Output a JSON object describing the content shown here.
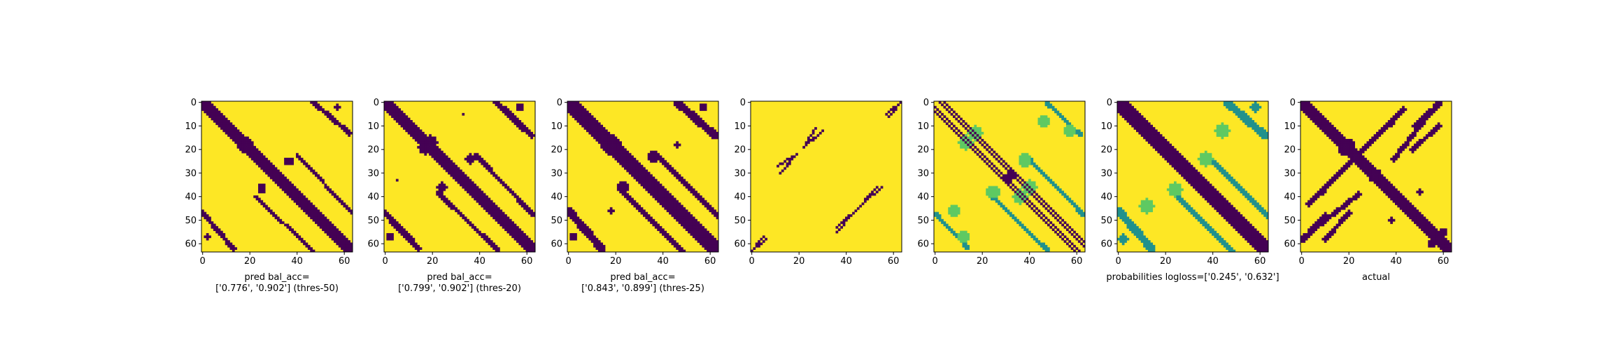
{
  "colors": {
    "background": "#fde725",
    "dark": "#440154",
    "mid": "#21918c",
    "light": "#5ec962",
    "frame": "#000000"
  },
  "chart_data": [
    {
      "type": "heatmap",
      "label_lines": [
        "pred bal_acc=",
        "['0.776', '0.902'] (thres-50)"
      ],
      "matrix_size": 64,
      "xticks": [
        0,
        20,
        40,
        60
      ],
      "yticks": [
        0,
        10,
        20,
        30,
        40,
        50,
        60
      ],
      "description_band": [
        {
          "offset": 0,
          "width": 2.2
        }
      ],
      "features": [
        {
          "kind": "band",
          "from": [
            47,
            0
          ],
          "to": [
            62,
            13
          ],
          "width": 1.0
        },
        {
          "kind": "band",
          "from": [
            40,
            22
          ],
          "to": [
            63,
            47
          ],
          "width": 0.7
        },
        {
          "kind": "blob",
          "center": [
            19,
            17
          ],
          "radius": 2.2
        },
        {
          "kind": "blob",
          "center": [
            25,
            37
          ],
          "radius": 1.5
        },
        {
          "kind": "blob",
          "center": [
            36,
            25
          ],
          "radius": 1.5
        },
        {
          "kind": "blob",
          "center": [
            2,
            57
          ],
          "radius": 1.4
        },
        {
          "kind": "blob",
          "center": [
            57,
            2
          ],
          "radius": 1.2
        }
      ]
    },
    {
      "type": "heatmap",
      "label_lines": [
        "pred bal_acc=",
        "['0.799', '0.902'] (thres-20)"
      ],
      "matrix_size": 64,
      "xticks": [
        0,
        20,
        40,
        60
      ],
      "yticks": [
        0,
        10,
        20,
        30,
        40,
        50,
        60
      ],
      "description_band": [
        {
          "offset": 0,
          "width": 2.8
        }
      ],
      "features": [
        {
          "kind": "band",
          "from": [
            47,
            0
          ],
          "to": [
            62,
            14
          ],
          "width": 1.3
        },
        {
          "kind": "band",
          "from": [
            38,
            22
          ],
          "to": [
            63,
            48
          ],
          "width": 0.9
        },
        {
          "kind": "blob",
          "center": [
            19,
            17
          ],
          "radius": 3.0
        },
        {
          "kind": "blob",
          "center": [
            24,
            36
          ],
          "radius": 2.0
        },
        {
          "kind": "blob",
          "center": [
            36,
            24
          ],
          "radius": 2.0
        },
        {
          "kind": "blob",
          "center": [
            2,
            57
          ],
          "radius": 1.5
        },
        {
          "kind": "blob",
          "center": [
            57,
            2
          ],
          "radius": 1.5
        },
        {
          "kind": "blob",
          "center": [
            33,
            5
          ],
          "radius": 0.8
        }
      ]
    },
    {
      "type": "heatmap",
      "label_lines": [
        "pred bal_acc=",
        "['0.843', '0.899'] (thres-25)"
      ],
      "matrix_size": 64,
      "xticks": [
        0,
        20,
        40,
        60
      ],
      "yticks": [
        0,
        10,
        20,
        30,
        40,
        50,
        60
      ],
      "description_band": [
        {
          "offset": 0,
          "width": 3.0
        }
      ],
      "features": [
        {
          "kind": "band",
          "from": [
            46,
            0
          ],
          "to": [
            62,
            14
          ],
          "width": 1.6
        },
        {
          "kind": "band",
          "from": [
            37,
            22
          ],
          "to": [
            63,
            48
          ],
          "width": 1.2
        },
        {
          "kind": "blob",
          "center": [
            18,
            18
          ],
          "radius": 4.2
        },
        {
          "kind": "blob",
          "center": [
            23,
            36
          ],
          "radius": 2.4
        },
        {
          "kind": "blob",
          "center": [
            36,
            23
          ],
          "radius": 2.4
        },
        {
          "kind": "blob",
          "center": [
            2,
            57
          ],
          "radius": 1.8
        },
        {
          "kind": "blob",
          "center": [
            57,
            2
          ],
          "radius": 1.8
        },
        {
          "kind": "blob",
          "center": [
            46,
            18
          ],
          "radius": 1.2
        }
      ]
    },
    {
      "type": "heatmap",
      "label_lines": [],
      "matrix_size": 64,
      "xticks": [
        0,
        20,
        40,
        60
      ],
      "yticks": [
        0,
        10,
        20,
        30,
        40,
        50,
        60
      ],
      "description_band": [],
      "features": [
        {
          "kind": "band",
          "from": [
            30,
            12
          ],
          "to": [
            22,
            19
          ],
          "width": 0.4
        },
        {
          "kind": "band",
          "from": [
            11,
            27
          ],
          "to": [
            17,
            23
          ],
          "width": 0.4
        },
        {
          "kind": "band",
          "from": [
            53,
            36
          ],
          "to": [
            44,
            46
          ],
          "width": 0.4
        },
        {
          "kind": "band",
          "from": [
            42,
            48
          ],
          "to": [
            36,
            55
          ],
          "width": 0.4
        },
        {
          "kind": "band",
          "from": [
            58,
            6
          ],
          "to": [
            63,
            0
          ],
          "width": 0.4
        },
        {
          "kind": "band",
          "from": [
            5,
            57
          ],
          "to": [
            0,
            63
          ],
          "width": 0.4
        }
      ]
    },
    {
      "type": "heatmap",
      "label_lines": [],
      "matrix_size": 64,
      "xticks": [
        0,
        20,
        40,
        60
      ],
      "yticks": [
        0,
        10,
        20,
        30,
        40,
        50,
        60
      ],
      "description_band": [
        {
          "offset": 2,
          "width": 0.6
        },
        {
          "offset": -2,
          "width": 0.6
        },
        {
          "offset": 4,
          "width": 0.5
        },
        {
          "offset": -4,
          "width": 0.5
        }
      ],
      "features": [
        {
          "kind": "band",
          "from": [
            47,
            0
          ],
          "to": [
            62,
            14
          ],
          "width": 0.8,
          "tone": "mid"
        },
        {
          "kind": "band",
          "from": [
            38,
            22
          ],
          "to": [
            63,
            48
          ],
          "width": 0.8,
          "tone": "mid"
        },
        {
          "kind": "blob",
          "center": [
            31,
            32
          ],
          "radius": 2.2
        },
        {
          "kind": "blob",
          "center": [
            13,
            17
          ],
          "radius": 3.0,
          "tone": "light"
        },
        {
          "kind": "blob",
          "center": [
            40,
            36
          ],
          "radius": 3.0,
          "tone": "light"
        },
        {
          "kind": "blob",
          "center": [
            25,
            38
          ],
          "radius": 2.5,
          "tone": "light"
        },
        {
          "kind": "blob",
          "center": [
            38,
            24
          ],
          "radius": 2.5,
          "tone": "light"
        },
        {
          "kind": "blob",
          "center": [
            57,
            12
          ],
          "radius": 2.5,
          "tone": "light"
        },
        {
          "kind": "blob",
          "center": [
            8,
            46
          ],
          "radius": 2.5,
          "tone": "light"
        }
      ]
    },
    {
      "type": "heatmap",
      "label_lines": [
        "probabilities logloss=['0.245', '0.632']"
      ],
      "matrix_size": 64,
      "xticks": [
        0,
        20,
        40,
        60
      ],
      "yticks": [
        0,
        10,
        20,
        30,
        40,
        50,
        60
      ],
      "description_band": [
        {
          "offset": 0,
          "width": 3.2
        }
      ],
      "features": [
        {
          "kind": "band",
          "from": [
            46,
            0
          ],
          "to": [
            62,
            14
          ],
          "width": 1.6,
          "tone": "mid"
        },
        {
          "kind": "band",
          "from": [
            37,
            22
          ],
          "to": [
            63,
            48
          ],
          "width": 1.4,
          "tone": "mid"
        },
        {
          "kind": "blob",
          "center": [
            18,
            18
          ],
          "radius": 3.5,
          "tone": "mid"
        },
        {
          "kind": "blob",
          "center": [
            24,
            37
          ],
          "radius": 3.0,
          "tone": "light"
        },
        {
          "kind": "blob",
          "center": [
            37,
            24
          ],
          "radius": 3.0,
          "tone": "light"
        },
        {
          "kind": "blob",
          "center": [
            12,
            44
          ],
          "radius": 3.0,
          "tone": "light"
        },
        {
          "kind": "blob",
          "center": [
            44,
            12
          ],
          "radius": 3.0,
          "tone": "light"
        },
        {
          "kind": "blob",
          "center": [
            2,
            58
          ],
          "radius": 2.0,
          "tone": "mid"
        }
      ]
    },
    {
      "type": "heatmap",
      "label_lines": [
        "actual"
      ],
      "matrix_size": 64,
      "xticks": [
        0,
        20,
        40,
        60
      ],
      "yticks": [
        0,
        10,
        20,
        30,
        40,
        50,
        60
      ],
      "description_band": [
        {
          "offset": 0,
          "width": 2.5
        }
      ],
      "features": [
        {
          "kind": "band",
          "from": [
            43,
            3
          ],
          "to": [
            24,
            22
          ],
          "width": 1.3
        },
        {
          "kind": "band",
          "from": [
            39,
            24
          ],
          "to": [
            58,
            0
          ],
          "width": 1.0
        },
        {
          "kind": "band",
          "from": [
            1,
            58
          ],
          "to": [
            10,
            48
          ],
          "width": 1.2
        },
        {
          "kind": "band",
          "from": [
            20,
            47
          ],
          "to": [
            10,
            58
          ],
          "width": 1.0
        },
        {
          "kind": "blob",
          "center": [
            31,
            31
          ],
          "radius": 3.0
        },
        {
          "kind": "blob",
          "center": [
            18,
            20
          ],
          "radius": 2.5
        },
        {
          "kind": "blob",
          "center": [
            55,
            60
          ],
          "radius": 1.5
        },
        {
          "kind": "blob",
          "center": [
            9,
            38
          ],
          "radius": 1.3
        },
        {
          "kind": "blob",
          "center": [
            50,
            38
          ],
          "radius": 1.2
        }
      ]
    }
  ]
}
